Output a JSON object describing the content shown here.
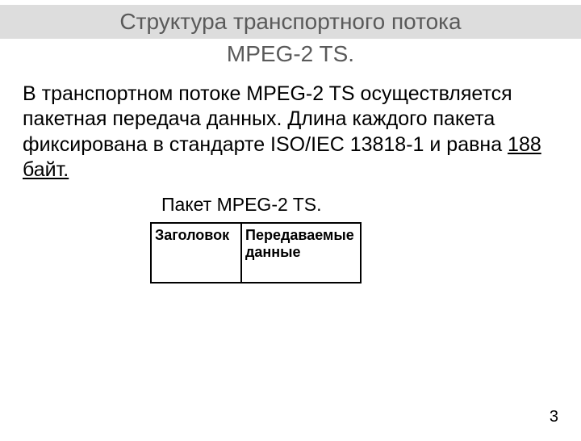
{
  "title": {
    "line1": "Структура транспортного потока",
    "line2": "MPEG-2 TS."
  },
  "body": {
    "text_before_underline": "В транспортном потоке MPEG-2 TS осуществляется пакетная передача данных. Длина каждого пакета фиксирована в стандарте ISO/IEC 13818-1 и равна ",
    "underlined_text": "188 байт."
  },
  "packet": {
    "label": "Пакет MPEG-2 TS.",
    "header_cell": "Заголовок",
    "payload_cell": "Передаваемые данные"
  },
  "page_number": "3",
  "colors": {
    "title_bg": "#dddddd",
    "title_text": "#5a5a5a",
    "body_text": "#000000",
    "table_border": "#000000",
    "background": "#ffffff"
  }
}
